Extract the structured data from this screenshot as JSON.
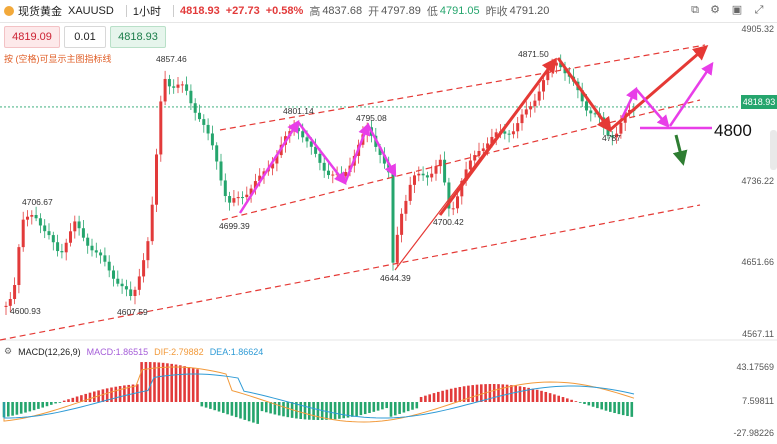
{
  "topbar": {
    "instrument": "现货黄金",
    "symbol": "XAUUSD",
    "timeframe": "1小时",
    "price": "4818.93",
    "change": "+27.73",
    "change_pct": "+0.58%",
    "high_label": "高",
    "high": "4837.68",
    "open_label": "开",
    "open": "4797.89",
    "low_label": "低",
    "low": "4791.05",
    "prev_label": "昨收",
    "prev": "4791.20"
  },
  "trade": {
    "sell": "4819.09",
    "lots": "0.01",
    "buy": "4818.93"
  },
  "hint": "按 (空格)可显示主图指标线",
  "price_axis": [
    "4905.32",
    "4818.93",
    "4736.22",
    "4651.66",
    "4567.11"
  ],
  "current_price_tag": "4818.93",
  "annotations": [
    "4857.46",
    "4801.14",
    "4795.08",
    "4871.50",
    "4706.67",
    "4699.39",
    "4700.42",
    "4787",
    "4644.39",
    "4607.59",
    "4600.93"
  ],
  "big_label": "4800",
  "macd": {
    "name": "MACD(12,26,9)",
    "macd": "MACD:1.86515",
    "dif": "DIF:2.79882",
    "dea": "DEA:1.86624",
    "axis": [
      "43.17569",
      "7.59811",
      "-27.98226"
    ]
  },
  "colors": {
    "up": "#e23a3a",
    "down": "#25a56d",
    "magenta": "#e83ee8",
    "red": "#e53935",
    "green": "#2e7d32"
  },
  "chart_data": {
    "type": "candlestick",
    "symbol": "XAUUSD",
    "timeframe": "1H",
    "ylim": [
      4567.11,
      4905.32
    ],
    "key_points": [
      {
        "label": "4600.93",
        "value": 4600.93
      },
      {
        "label": "4706.67",
        "value": 4706.67
      },
      {
        "label": "4607.59",
        "value": 4607.59
      },
      {
        "label": "4857.46",
        "value": 4857.46
      },
      {
        "label": "4699.39",
        "value": 4699.39
      },
      {
        "label": "4801.14",
        "value": 4801.14
      },
      {
        "label": "4795.08",
        "value": 4795.08
      },
      {
        "label": "4644.39",
        "value": 4644.39
      },
      {
        "label": "4700.42",
        "value": 4700.42
      },
      {
        "label": "4871.50",
        "value": 4871.5
      },
      {
        "label": "4787",
        "value": 4787
      },
      {
        "label": "current",
        "value": 4818.93
      }
    ]
  }
}
